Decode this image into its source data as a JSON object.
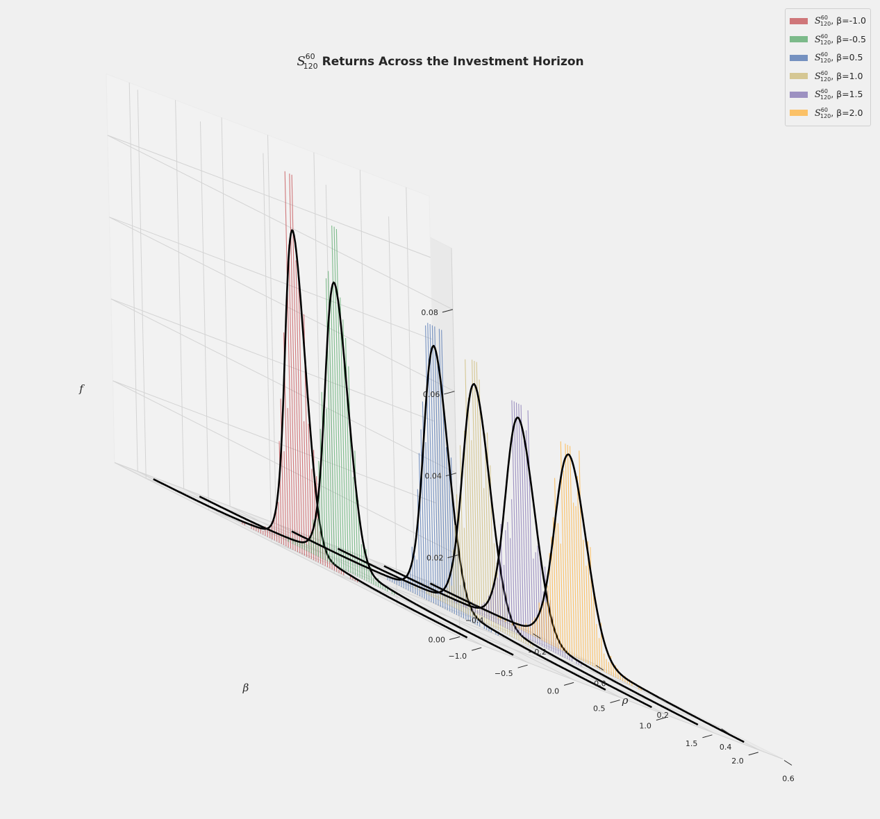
{
  "chart_data": {
    "type": "3d-histogram",
    "title": {
      "symbol": "S",
      "superscript": "60",
      "subscript": "120",
      "text": "Returns Across the Investment Horizon"
    },
    "axes": {
      "x": {
        "label": "ρ",
        "range": [
          -0.5,
          0.6
        ],
        "ticks": [
          "−0.4",
          "−0.2",
          "0.0",
          "0.2",
          "0.4",
          "0.6"
        ],
        "tick_values": [
          -0.4,
          -0.2,
          0.0,
          0.2,
          0.4,
          0.6
        ]
      },
      "y": {
        "label": "β",
        "range": [
          -1.25,
          2.25
        ],
        "ticks": [
          "−1.0",
          "−0.5",
          "0.0",
          "0.5",
          "1.0",
          "1.5",
          "2.0"
        ],
        "tick_values": [
          -1.0,
          -0.5,
          0.0,
          0.5,
          1.0,
          1.5,
          2.0
        ]
      },
      "z": {
        "label": "f",
        "range": [
          0,
          0.095
        ],
        "ticks": [
          "0.00",
          "0.02",
          "0.04",
          "0.06",
          "0.08"
        ],
        "tick_values": [
          0.0,
          0.02,
          0.04,
          0.06,
          0.08
        ]
      }
    },
    "grid": true,
    "legend_position": "top-right",
    "series": [
      {
        "name": "S_120^60, β=-1.0",
        "label_symbol": "S",
        "label_sup": "60",
        "label_sub": "120",
        "label_text": ", β=-1.0",
        "beta": -1.0,
        "color": "#c44e52",
        "mean": 0.015,
        "std": 0.032,
        "peak": 0.0745,
        "hist_max": 0.0925
      },
      {
        "name": "S_120^60, β=-0.5",
        "label_symbol": "S",
        "label_sup": "60",
        "label_sub": "120",
        "label_text": ", β=-0.5",
        "beta": -0.5,
        "color": "#55a868",
        "mean": -0.002,
        "std": 0.036,
        "peak": 0.0658,
        "hist_max": 0.0835
      },
      {
        "name": "S_120^60, β=0.5",
        "label_symbol": "S",
        "label_sup": "60",
        "label_sub": "120",
        "label_text": ", β=0.5",
        "beta": 0.5,
        "color": "#4c72b0",
        "mean": 0.02,
        "std": 0.039,
        "peak": 0.06,
        "hist_max": 0.0685
      },
      {
        "name": "S_120^60, β=1.0",
        "label_symbol": "S",
        "label_sup": "60",
        "label_sub": "120",
        "label_text": ", β=1.0",
        "beta": 1.0,
        "color": "#ccb974",
        "mean": 0.0,
        "std": 0.043,
        "peak": 0.0545,
        "hist_max": 0.0635
      },
      {
        "name": "S_120^60, β=1.5",
        "label_symbol": "S",
        "label_sup": "60",
        "label_sub": "120",
        "label_text": ", β=1.5",
        "beta": 1.5,
        "color": "#8172b2",
        "mean": -0.008,
        "std": 0.046,
        "peak": 0.0505,
        "hist_max": 0.057
      },
      {
        "name": "S_120^60, β=2.0",
        "label_symbol": "S",
        "label_sup": "60",
        "label_sub": "120",
        "label_text": ", β=2.0",
        "beta": 2.0,
        "color": "#ffb13a",
        "mean": 0.005,
        "std": 0.05,
        "peak": 0.0465,
        "hist_max": 0.0515
      }
    ]
  }
}
